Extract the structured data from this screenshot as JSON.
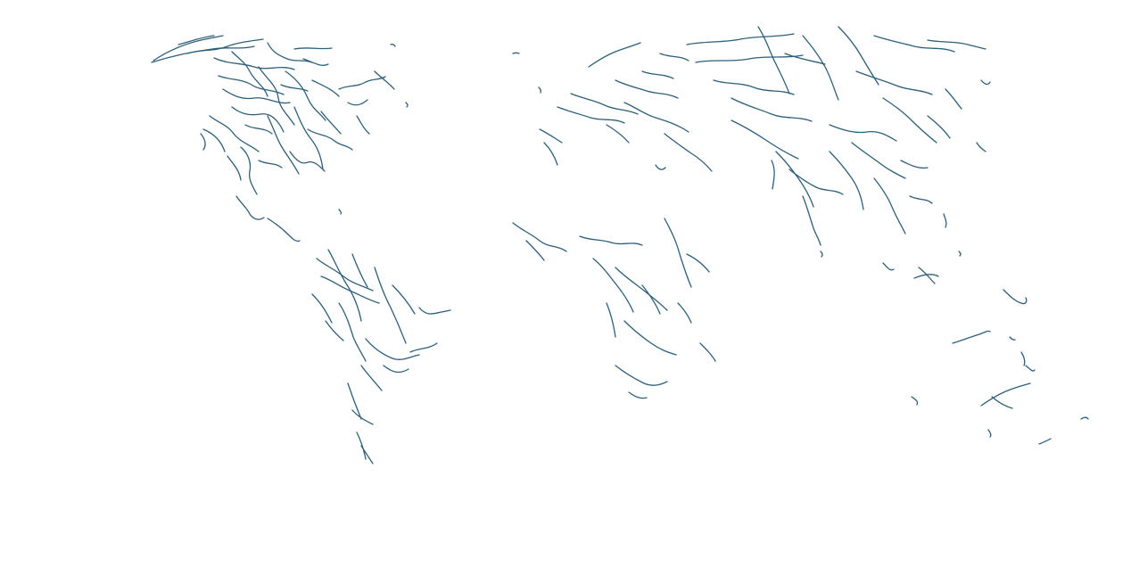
{
  "map": {
    "type": "river-network",
    "projection": "equirectangular",
    "title": "",
    "legend": "none",
    "labels": "none",
    "background_color": "#ffffff",
    "river_color": "#2e5f7a"
  }
}
